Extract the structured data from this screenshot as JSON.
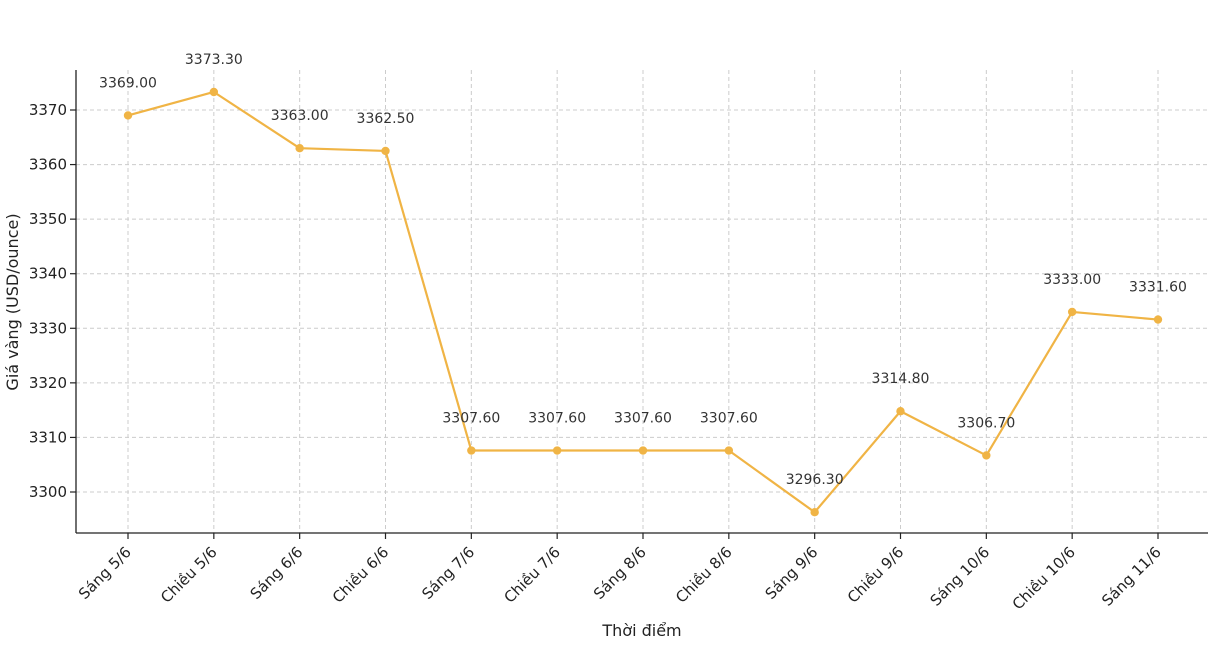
{
  "chart_data": {
    "type": "line",
    "title": "",
    "xlabel": "Thời điểm",
    "ylabel": "Giá vàng (USD/ounce)",
    "categories": [
      "Sáng 5/6",
      "Chiều 5/6",
      "Sáng 6/6",
      "Chiều 6/6",
      "Sáng 7/6",
      "Chiều 7/6",
      "Sáng 8/6",
      "Chiều 8/6",
      "Sáng 9/6",
      "Chiều 9/6",
      "Sáng 10/6",
      "Chiều 10/6",
      "Sáng 11/6"
    ],
    "values": [
      3369.0,
      3373.3,
      3363.0,
      3362.5,
      3307.6,
      3307.6,
      3307.6,
      3307.6,
      3296.3,
      3314.8,
      3306.7,
      3333.0,
      3331.6
    ],
    "value_labels": [
      "3369.00",
      "3373.30",
      "3363.00",
      "3362.50",
      "3307.60",
      "3307.60",
      "3307.60",
      "3307.60",
      "3296.30",
      "3314.80",
      "3306.70",
      "3333.00",
      "3331.60"
    ],
    "yticks": [
      3300,
      3310,
      3320,
      3330,
      3340,
      3350,
      3360,
      3370
    ],
    "ylim": [
      3292.5,
      3377
    ],
    "grid": true,
    "color": "#f0b445"
  }
}
